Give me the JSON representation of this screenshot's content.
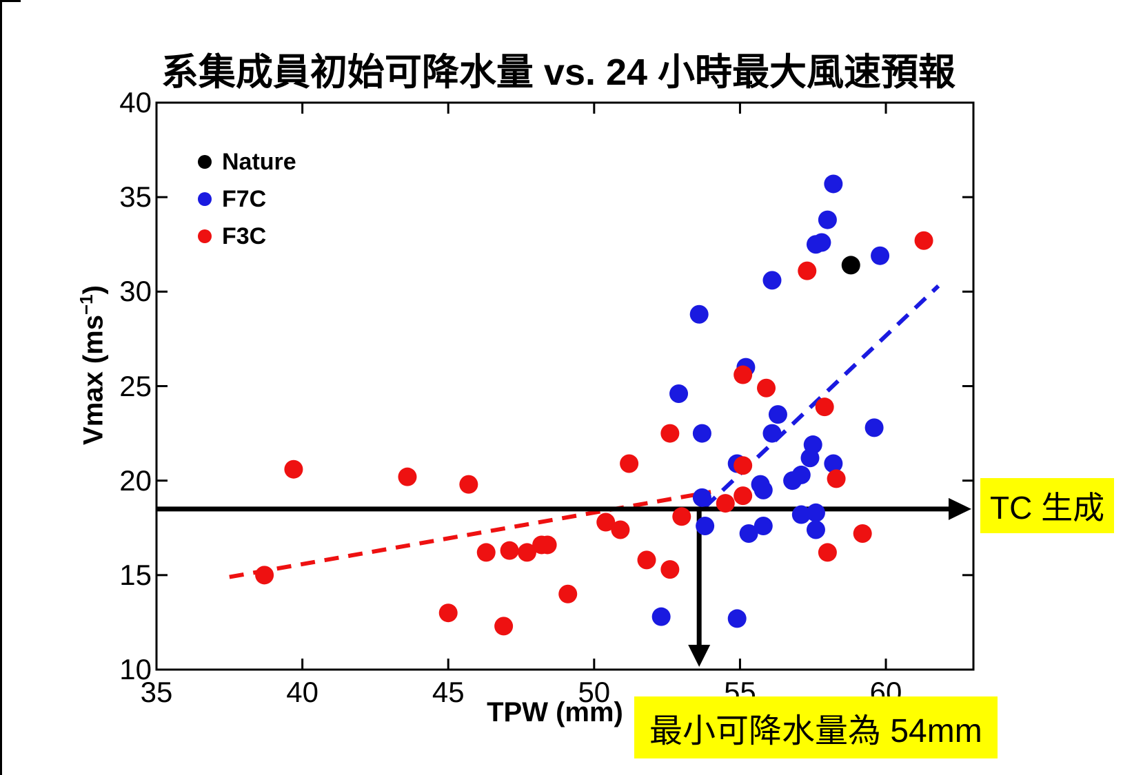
{
  "title": "系集成員初始可降水量 vs. 24 小時最大風速預報",
  "annotations": {
    "tc_label": "TC 生成",
    "min_tpw_label": "最小可降水量為 54mm",
    "highlight_color": "#ffff00"
  },
  "chart_data": {
    "type": "scatter",
    "title": "系集成員初始可降水量 vs. 24 小時最大風速預報",
    "xlabel": "TPW (mm)",
    "ylabel_parts": {
      "prefix": "Vmax (ms",
      "sup": "−1",
      "suffix": ")"
    },
    "xlim": [
      35,
      63
    ],
    "ylim": [
      10,
      40
    ],
    "xticks": [
      35,
      40,
      45,
      50,
      55,
      60
    ],
    "yticks": [
      10,
      15,
      20,
      25,
      30,
      35,
      40
    ],
    "grid": false,
    "legend_position": "upper-left",
    "axis_color": "#000000",
    "series": [
      {
        "name": "Nature",
        "color": "#000000",
        "points": [
          [
            58.8,
            31.4
          ]
        ]
      },
      {
        "name": "F7C",
        "color": "#1a1ae0",
        "points": [
          [
            58.2,
            35.7
          ],
          [
            58.0,
            33.8
          ],
          [
            57.6,
            32.5
          ],
          [
            57.8,
            32.6
          ],
          [
            59.8,
            31.9
          ],
          [
            56.1,
            30.6
          ],
          [
            53.6,
            28.8
          ],
          [
            55.2,
            26.0
          ],
          [
            52.9,
            24.6
          ],
          [
            56.3,
            23.5
          ],
          [
            53.7,
            22.5
          ],
          [
            56.1,
            22.5
          ],
          [
            59.6,
            22.8
          ],
          [
            57.5,
            21.9
          ],
          [
            57.4,
            21.2
          ],
          [
            58.2,
            20.9
          ],
          [
            54.9,
            20.9
          ],
          [
            56.8,
            20.0
          ],
          [
            57.1,
            20.3
          ],
          [
            55.7,
            19.8
          ],
          [
            55.8,
            19.5
          ],
          [
            53.7,
            19.1
          ],
          [
            57.1,
            18.2
          ],
          [
            57.6,
            18.3
          ],
          [
            53.8,
            17.6
          ],
          [
            55.3,
            17.2
          ],
          [
            55.8,
            17.6
          ],
          [
            57.6,
            17.4
          ],
          [
            52.3,
            12.8
          ],
          [
            54.9,
            12.7
          ]
        ]
      },
      {
        "name": "F3C",
        "color": "#ee1111",
        "points": [
          [
            61.3,
            32.7
          ],
          [
            57.3,
            31.1
          ],
          [
            55.1,
            25.6
          ],
          [
            55.9,
            24.9
          ],
          [
            57.9,
            23.9
          ],
          [
            52.6,
            22.5
          ],
          [
            51.2,
            20.9
          ],
          [
            55.1,
            20.8
          ],
          [
            58.3,
            20.1
          ],
          [
            39.7,
            20.6
          ],
          [
            43.6,
            20.2
          ],
          [
            45.7,
            19.8
          ],
          [
            55.1,
            19.2
          ],
          [
            54.5,
            18.8
          ],
          [
            53.0,
            18.1
          ],
          [
            50.4,
            17.8
          ],
          [
            50.9,
            17.4
          ],
          [
            59.2,
            17.2
          ],
          [
            58.0,
            16.2
          ],
          [
            51.8,
            15.8
          ],
          [
            52.6,
            15.3
          ],
          [
            46.3,
            16.2
          ],
          [
            47.1,
            16.3
          ],
          [
            47.7,
            16.2
          ],
          [
            48.2,
            16.6
          ],
          [
            48.4,
            16.6
          ],
          [
            49.1,
            14.0
          ],
          [
            38.7,
            15.0
          ],
          [
            45.0,
            13.0
          ],
          [
            46.9,
            12.3
          ]
        ]
      }
    ],
    "trend_lines": [
      {
        "name": "f3c-trend",
        "color": "#ee1111",
        "from": [
          37.5,
          14.9
        ],
        "to": [
          54.0,
          19.4
        ]
      },
      {
        "name": "f7c-trend",
        "color": "#1a1ae0",
        "from": [
          53.8,
          18.6
        ],
        "to": [
          61.8,
          30.3
        ]
      }
    ],
    "tc_threshold_y": 18.5,
    "min_tpw_x": 53.6
  }
}
